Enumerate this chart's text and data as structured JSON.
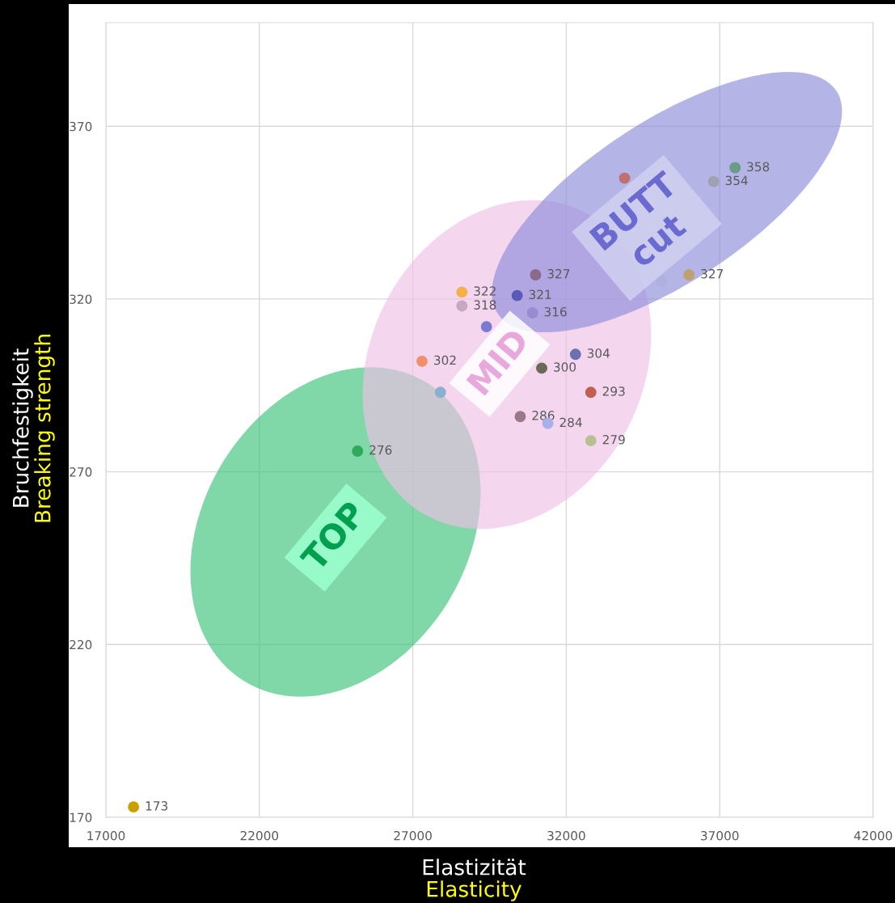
{
  "chart_data": {
    "type": "scatter",
    "xlabel": "Elastizität\nElasticity",
    "ylabel": "Bruchfestigkeit\nBreaking strength",
    "x": [
      17900,
      25200,
      27300,
      27900,
      28600,
      28600,
      29400,
      30400,
      31000,
      30900,
      30500,
      31200,
      31400,
      32300,
      32800,
      32800,
      33900,
      35100,
      36000,
      36800,
      37500
    ],
    "values": [
      173,
      276,
      302,
      293,
      322,
      318,
      312,
      321,
      327,
      316,
      286,
      300,
      284,
      304,
      293,
      279,
      355,
      325,
      327,
      354,
      358
    ],
    "value_labels": [
      "173",
      "276",
      "302",
      null,
      "322",
      "318",
      null,
      "321",
      "327",
      "316",
      "286",
      "300",
      "284",
      "304",
      "293",
      "279",
      null,
      null,
      "327",
      "354",
      "358"
    ],
    "colors": [
      "#c8a000",
      "#2eaa5a",
      "#f0906a",
      "#8ab0d0",
      "#f5b04a",
      "#c8a8c0",
      "#7a7ad0",
      "#5a5ab8",
      "#8a6a88",
      "#9a8ad0",
      "#9a7888",
      "#6a6a5a",
      "#a8b0e8",
      "#6a70b0",
      "#c06050",
      "#b8c090",
      "#c07070",
      "#b0b0e0",
      "#c0a070",
      "#a0a0b0",
      "#6a9a88"
    ],
    "xlim": [
      17000,
      42000
    ],
    "ylim": [
      170,
      400
    ],
    "xticks": [
      17000,
      22000,
      27000,
      32000,
      37000,
      42000
    ],
    "yticks": [
      170,
      220,
      270,
      320,
      370
    ],
    "grid": true,
    "marker": "circle",
    "annotations": [
      "TOP",
      "MID",
      "BUTT\ncut"
    ]
  }
}
